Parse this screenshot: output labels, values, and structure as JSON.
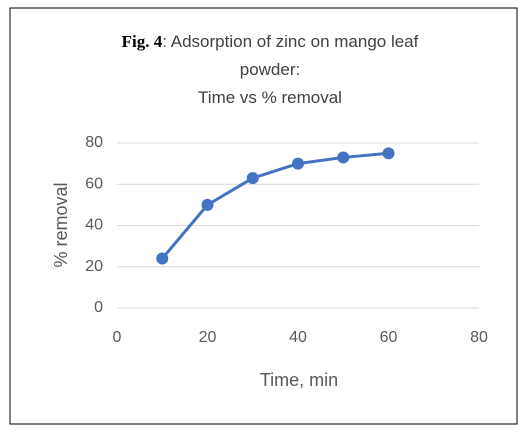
{
  "chart_data": {
    "type": "line",
    "title_prefix": "Fig. 4",
    "title": ": Adsorption of zinc on mango leaf powder:",
    "subtitle": "Time vs % removal",
    "x_label": "Time, min",
    "y_label": "% removal",
    "x": [
      10,
      20,
      30,
      40,
      50,
      60
    ],
    "series": [
      {
        "name": "% removal",
        "color": "#4472c4",
        "values": [
          24,
          50,
          63,
          70,
          73,
          75
        ]
      }
    ],
    "xlim": [
      0,
      80
    ],
    "xticks": [
      0,
      20,
      40,
      60,
      80
    ],
    "ylim": [
      0,
      80
    ],
    "yticks": [
      0,
      20,
      40,
      60,
      80
    ],
    "grid": true
  }
}
